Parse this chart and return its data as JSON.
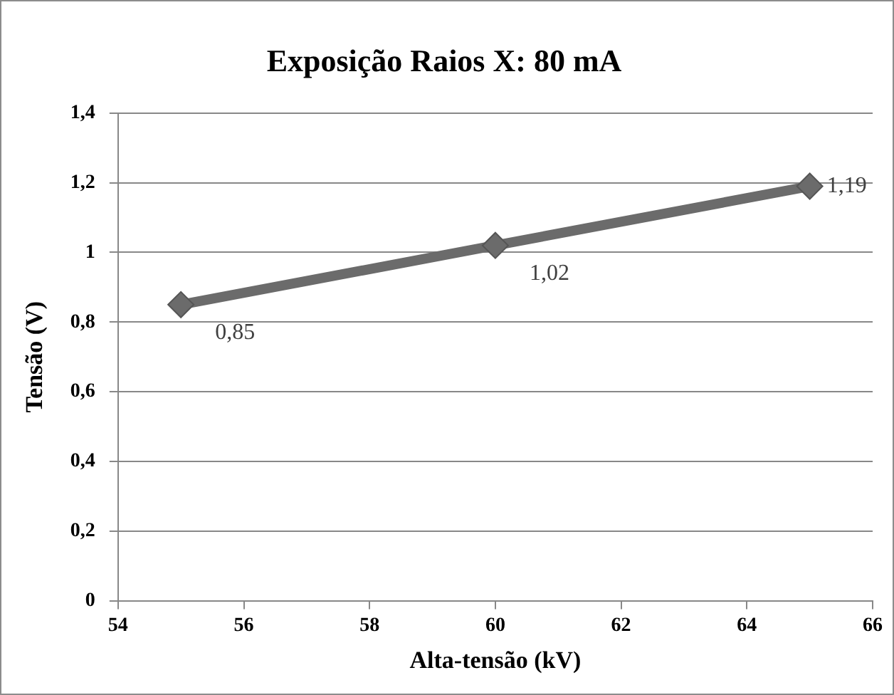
{
  "chart_data": {
    "type": "line",
    "title": "Exposição Raios X: 80 mA",
    "xlabel": "Alta-tensão (kV)",
    "ylabel": "Tensão (V)",
    "x": [
      55,
      60,
      65
    ],
    "series": [
      {
        "color": "#6b6b6b",
        "values": [
          0.85,
          1.02,
          1.19
        ],
        "value_labels": [
          "0,85",
          "1,02",
          "1,19"
        ]
      }
    ],
    "xlim": [
      54,
      66
    ],
    "xticks": [
      54,
      56,
      58,
      60,
      62,
      64,
      66
    ],
    "ylim": [
      0,
      1.4
    ],
    "yticks": [
      0,
      {
        "value": 0.2,
        "label": "0,2"
      },
      {
        "value": 0.4,
        "label": "0,4"
      },
      {
        "value": 0.6,
        "label": "0,6"
      },
      {
        "value": 0.8,
        "label": "0,8"
      },
      1,
      {
        "value": 1.2,
        "label": "1,2"
      },
      {
        "value": 1.4,
        "label": "1,4"
      }
    ],
    "grid": "y",
    "legend": false,
    "marker": "diamond",
    "line_style": "solid"
  }
}
